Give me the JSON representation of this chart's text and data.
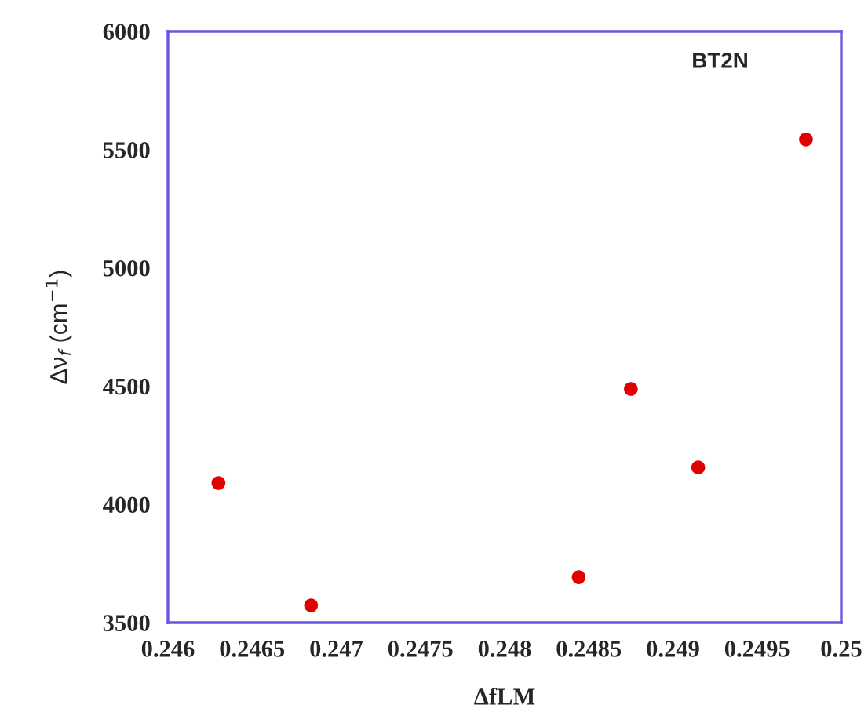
{
  "chart_data": {
    "type": "scatter",
    "xlabel": "ΔfLM",
    "ylabel": "Δν$_{f}$ (cm$^{−1}$)",
    "annotations": [
      "BT2N"
    ],
    "x": [
      0.2463,
      0.24685,
      0.24844,
      0.24875,
      0.24915,
      0.24979
    ],
    "series": [
      {
        "color": "#e00000",
        "values": [
          4090,
          3573,
          3692,
          4488,
          4156,
          5543
        ]
      }
    ],
    "marker": "circle",
    "xlim": [
      0.246,
      0.25
    ],
    "xticks": [
      0.246,
      0.2465,
      0.247,
      0.2475,
      0.248,
      0.2485,
      0.249,
      0.2495,
      0.25
    ],
    "ylim": [
      3500,
      6000
    ],
    "yticks": [
      3500,
      4000,
      4500,
      5000,
      5500,
      6000
    ],
    "grid": false,
    "legend": false
  }
}
